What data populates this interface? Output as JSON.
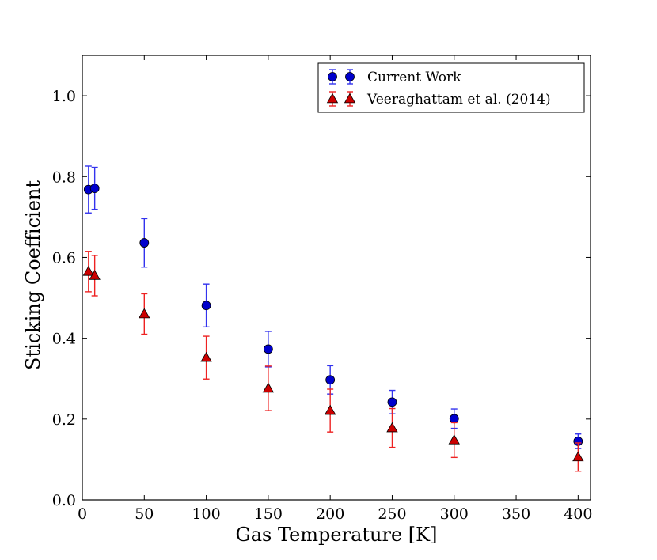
{
  "chart_data": {
    "type": "scatter",
    "title": "",
    "xlabel": "Gas Temperature [K]",
    "ylabel": "Sticking Coefficient",
    "xlim": [
      0,
      410
    ],
    "ylim": [
      0.0,
      1.1
    ],
    "grid": false,
    "legend_position": "top-right",
    "x_ticks": [
      0,
      50,
      100,
      150,
      200,
      250,
      300,
      350,
      400
    ],
    "x_tick_labels": [
      "0",
      "50",
      "100",
      "150",
      "200",
      "250",
      "300",
      "350",
      "400"
    ],
    "y_ticks": [
      0.0,
      0.2,
      0.4,
      0.6,
      0.8,
      1.0
    ],
    "y_tick_labels": [
      "0.0",
      "0.2",
      "0.4",
      "0.6",
      "0.8",
      "1.0"
    ],
    "series": [
      {
        "name": "Current Work",
        "marker": "circle",
        "color": "#0000cc",
        "error_color": "#3333ee",
        "x": [
          5,
          10,
          50,
          100,
          150,
          200,
          250,
          300,
          400
        ],
        "y": [
          0.768,
          0.771,
          0.636,
          0.481,
          0.373,
          0.297,
          0.242,
          0.201,
          0.145
        ],
        "yerr": [
          0.058,
          0.052,
          0.06,
          0.053,
          0.044,
          0.035,
          0.029,
          0.024,
          0.018
        ]
      },
      {
        "name": "Veeraghattam et al. (2014)",
        "marker": "triangle",
        "color": "#cc0000",
        "error_color": "#ee2222",
        "x": [
          5,
          10,
          50,
          100,
          150,
          200,
          250,
          300,
          400
        ],
        "y": [
          0.565,
          0.555,
          0.46,
          0.352,
          0.276,
          0.221,
          0.178,
          0.148,
          0.106
        ],
        "yerr": [
          0.05,
          0.05,
          0.05,
          0.053,
          0.055,
          0.053,
          0.048,
          0.043,
          0.035
        ]
      }
    ]
  }
}
